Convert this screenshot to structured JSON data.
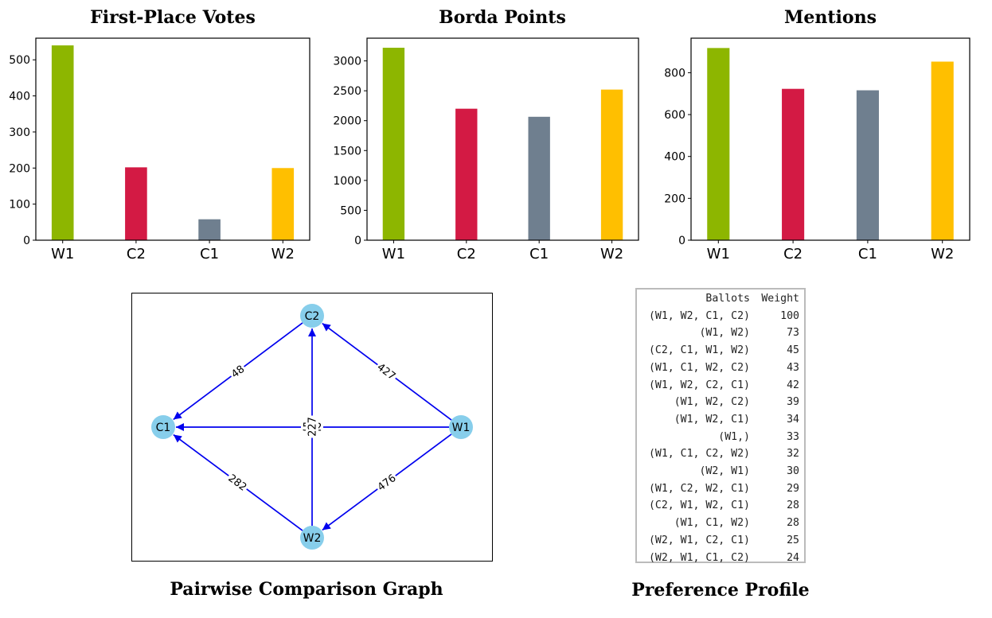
{
  "colors": {
    "W1": "#8db600",
    "C2": "#d31a44",
    "C1": "#6f7f8f",
    "W2": "#ffbf00",
    "edge": "#0000ee",
    "node": "#87ceeb"
  },
  "chart_data": [
    {
      "type": "bar",
      "title": "First-Place Votes",
      "categories": [
        "W1",
        "C2",
        "C1",
        "W2"
      ],
      "values": [
        540,
        202,
        58,
        200
      ],
      "ylim": [
        0,
        560
      ],
      "yticks": [
        0,
        100,
        200,
        300,
        400,
        500
      ],
      "grid": false
    },
    {
      "type": "bar",
      "title": "Borda Points",
      "categories": [
        "W1",
        "C2",
        "C1",
        "W2"
      ],
      "values": [
        3220,
        2200,
        2065,
        2520
      ],
      "ylim": [
        0,
        3380
      ],
      "yticks": [
        0,
        500,
        1000,
        1500,
        2000,
        2500,
        3000
      ],
      "grid": false
    },
    {
      "type": "bar",
      "title": "Mentions",
      "categories": [
        "W1",
        "C2",
        "C1",
        "W2"
      ],
      "values": [
        918,
        723,
        716,
        853
      ],
      "ylim": [
        0,
        965
      ],
      "yticks": [
        0,
        200,
        400,
        600,
        800
      ],
      "grid": false
    }
  ],
  "graph": {
    "title": "Pairwise Comparison Graph",
    "nodes": [
      {
        "id": "C2",
        "label": "C2"
      },
      {
        "id": "C1",
        "label": "C1"
      },
      {
        "id": "W1",
        "label": "W1"
      },
      {
        "id": "W2",
        "label": "W2"
      }
    ],
    "edges": [
      {
        "from": "C2",
        "to": "C1",
        "weight": "48"
      },
      {
        "from": "W1",
        "to": "C2",
        "weight": "427"
      },
      {
        "from": "W1",
        "to": "C1",
        "weight": "542"
      },
      {
        "from": "W2",
        "to": "C2",
        "weight": "227"
      },
      {
        "from": "W2",
        "to": "C1",
        "weight": "282"
      },
      {
        "from": "W1",
        "to": "W2",
        "weight": "476"
      }
    ]
  },
  "profile": {
    "title": "Preference Profile",
    "headers": [
      "Ballots",
      "Weight"
    ],
    "rows": [
      [
        "(W1, W2, C1, C2)",
        "100"
      ],
      [
        "(W1, W2)",
        "73"
      ],
      [
        "(C2, C1, W1, W2)",
        "45"
      ],
      [
        "(W1, C1, W2, C2)",
        "43"
      ],
      [
        "(W1, W2, C2, C1)",
        "42"
      ],
      [
        "(W1, W2, C2)",
        "39"
      ],
      [
        "(W1, W2, C1)",
        "34"
      ],
      [
        "(W1,)",
        "33"
      ],
      [
        "(W1, C1, C2, W2)",
        "32"
      ],
      [
        "(W2, W1)",
        "30"
      ],
      [
        "(W1, C2, W2, C1)",
        "29"
      ],
      [
        "(C2, W1, W2, C1)",
        "28"
      ],
      [
        "(W1, C1, W2)",
        "28"
      ],
      [
        "(W2, W1, C2, C1)",
        "25"
      ],
      [
        "(W2, W1, C1, C2)",
        "24"
      ]
    ]
  }
}
